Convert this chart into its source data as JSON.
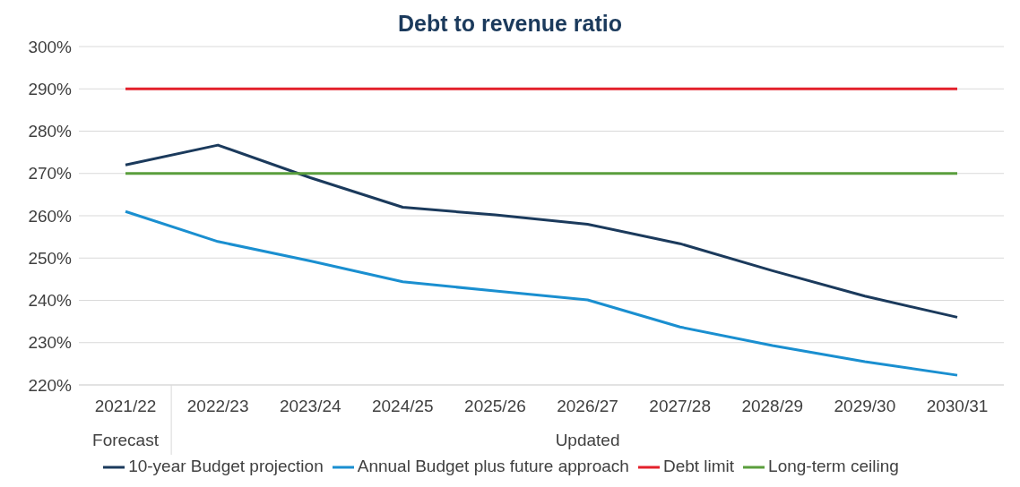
{
  "chart_data": {
    "type": "line",
    "title": "Debt to revenue ratio",
    "categories": [
      "2021/22",
      "2022/23",
      "2023/24",
      "2024/25",
      "2025/26",
      "2026/27",
      "2027/28",
      "2028/29",
      "2029/30",
      "2030/31"
    ],
    "series": [
      {
        "name": "10-year Budget projection",
        "color": "#1b3a5c",
        "values": [
          272,
          276.7,
          269,
          262,
          260.2,
          258,
          253.4,
          247,
          241,
          236
        ]
      },
      {
        "name": "Annual Budget plus future approach",
        "color": "#1a8fd0",
        "values": [
          261,
          253.9,
          249.3,
          244.4,
          242.2,
          240.1,
          233.7,
          229.3,
          225.5,
          222.3
        ]
      },
      {
        "name": "Debt limit",
        "color": "#e3202b",
        "values": [
          290,
          290,
          290,
          290,
          290,
          290,
          290,
          290,
          290,
          290
        ]
      },
      {
        "name": "Long-term ceiling",
        "color": "#5a9e3c",
        "values": [
          270,
          270,
          270,
          270,
          270,
          270,
          270,
          270,
          270,
          270
        ]
      }
    ],
    "ylim": [
      220,
      300
    ],
    "yticks": [
      {
        "value": 220,
        "label": "220%"
      },
      {
        "value": 230,
        "label": "230%"
      },
      {
        "value": 240,
        "label": "240%"
      },
      {
        "value": 250,
        "label": "250%"
      },
      {
        "value": 260,
        "label": "260%"
      },
      {
        "value": 270,
        "label": "270%"
      },
      {
        "value": 280,
        "label": "280%"
      },
      {
        "value": 290,
        "label": "290%"
      },
      {
        "value": 300,
        "label": "300%"
      }
    ],
    "annotations": [
      "Forecast",
      "Updated"
    ],
    "grid": "y",
    "legend": "bottom",
    "marker": "none",
    "line_style": "solid"
  }
}
